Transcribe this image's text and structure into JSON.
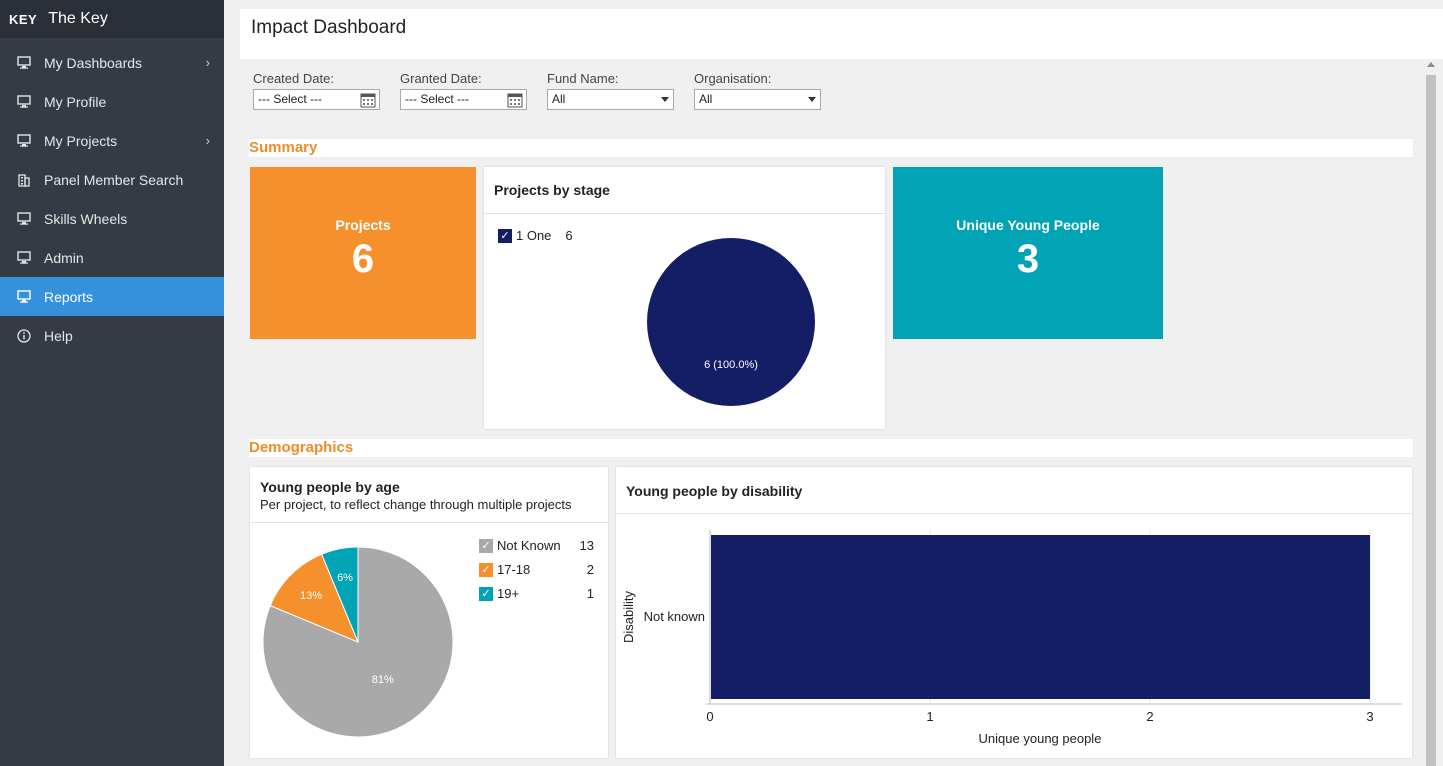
{
  "app": {
    "logo": "KEY",
    "name": "The Key"
  },
  "sidebar": {
    "items": [
      {
        "label": "My Dashboards",
        "icon": "monitor-icon",
        "has_submenu": true,
        "active": false
      },
      {
        "label": "My Profile",
        "icon": "monitor-icon",
        "has_submenu": false,
        "active": false
      },
      {
        "label": "My Projects",
        "icon": "monitor-icon",
        "has_submenu": true,
        "active": false
      },
      {
        "label": "Panel Member Search",
        "icon": "building-icon",
        "has_submenu": false,
        "active": false
      },
      {
        "label": "Skills Wheels",
        "icon": "monitor-icon",
        "has_submenu": false,
        "active": false
      },
      {
        "label": "Admin",
        "icon": "monitor-icon",
        "has_submenu": false,
        "active": false
      },
      {
        "label": "Reports",
        "icon": "monitor-icon",
        "has_submenu": false,
        "active": true
      },
      {
        "label": "Help",
        "icon": "info-icon",
        "has_submenu": false,
        "active": false
      }
    ]
  },
  "page": {
    "title": "Impact Dashboard"
  },
  "filters": {
    "created_date": {
      "label": "Created Date:",
      "value": "--- Select ---"
    },
    "granted_date": {
      "label": "Granted Date:",
      "value": "--- Select ---"
    },
    "fund_name": {
      "label": "Fund Name:",
      "value": "All"
    },
    "organisation": {
      "label": "Organisation:",
      "value": "All"
    }
  },
  "sections": {
    "summary": "Summary",
    "demographics": "Demographics"
  },
  "summary": {
    "projects": {
      "title": "Projects",
      "value": "6",
      "color": "#f5902d"
    },
    "unique_young_people": {
      "title": "Unique Young People",
      "value": "3",
      "color": "#00a4b4"
    },
    "projects_by_stage": {
      "title": "Projects by stage",
      "legend": [
        {
          "label": "1 One",
          "value": "6",
          "color": "#141e64"
        }
      ],
      "slice_label": "6 (100.0%)"
    }
  },
  "demographics": {
    "by_age": {
      "title": "Young people by age",
      "subtitle": "Per project, to reflect change through multiple projects",
      "legend": [
        {
          "label": "Not Known",
          "value": "13",
          "color": "#a9a9a9"
        },
        {
          "label": "17-18",
          "value": "2",
          "color": "#f5902d"
        },
        {
          "label": "19+",
          "value": "1",
          "color": "#00a4b4"
        }
      ]
    },
    "by_disability": {
      "title": "Young people by disability"
    }
  },
  "chart_data": [
    {
      "type": "pie",
      "title": "Projects by stage",
      "categories": [
        "1 One"
      ],
      "values": [
        6
      ],
      "colors": [
        "#141e64"
      ]
    },
    {
      "type": "pie",
      "title": "Young people by age",
      "categories": [
        "Not Known",
        "17-18",
        "19+"
      ],
      "values": [
        13,
        2,
        1
      ],
      "labels": [
        "81%",
        "13%",
        "6%"
      ],
      "colors": [
        "#a9a9a9",
        "#f5902d",
        "#00a4b4"
      ]
    },
    {
      "type": "bar",
      "orientation": "horizontal",
      "title": "Young people by disability",
      "categories": [
        "Not known"
      ],
      "values": [
        3
      ],
      "xlabel": "Unique young people",
      "ylabel": "Disability",
      "xlim": [
        0,
        3
      ],
      "xticks": [
        "0",
        "1",
        "2",
        "3"
      ],
      "color": "#141e64"
    }
  ]
}
